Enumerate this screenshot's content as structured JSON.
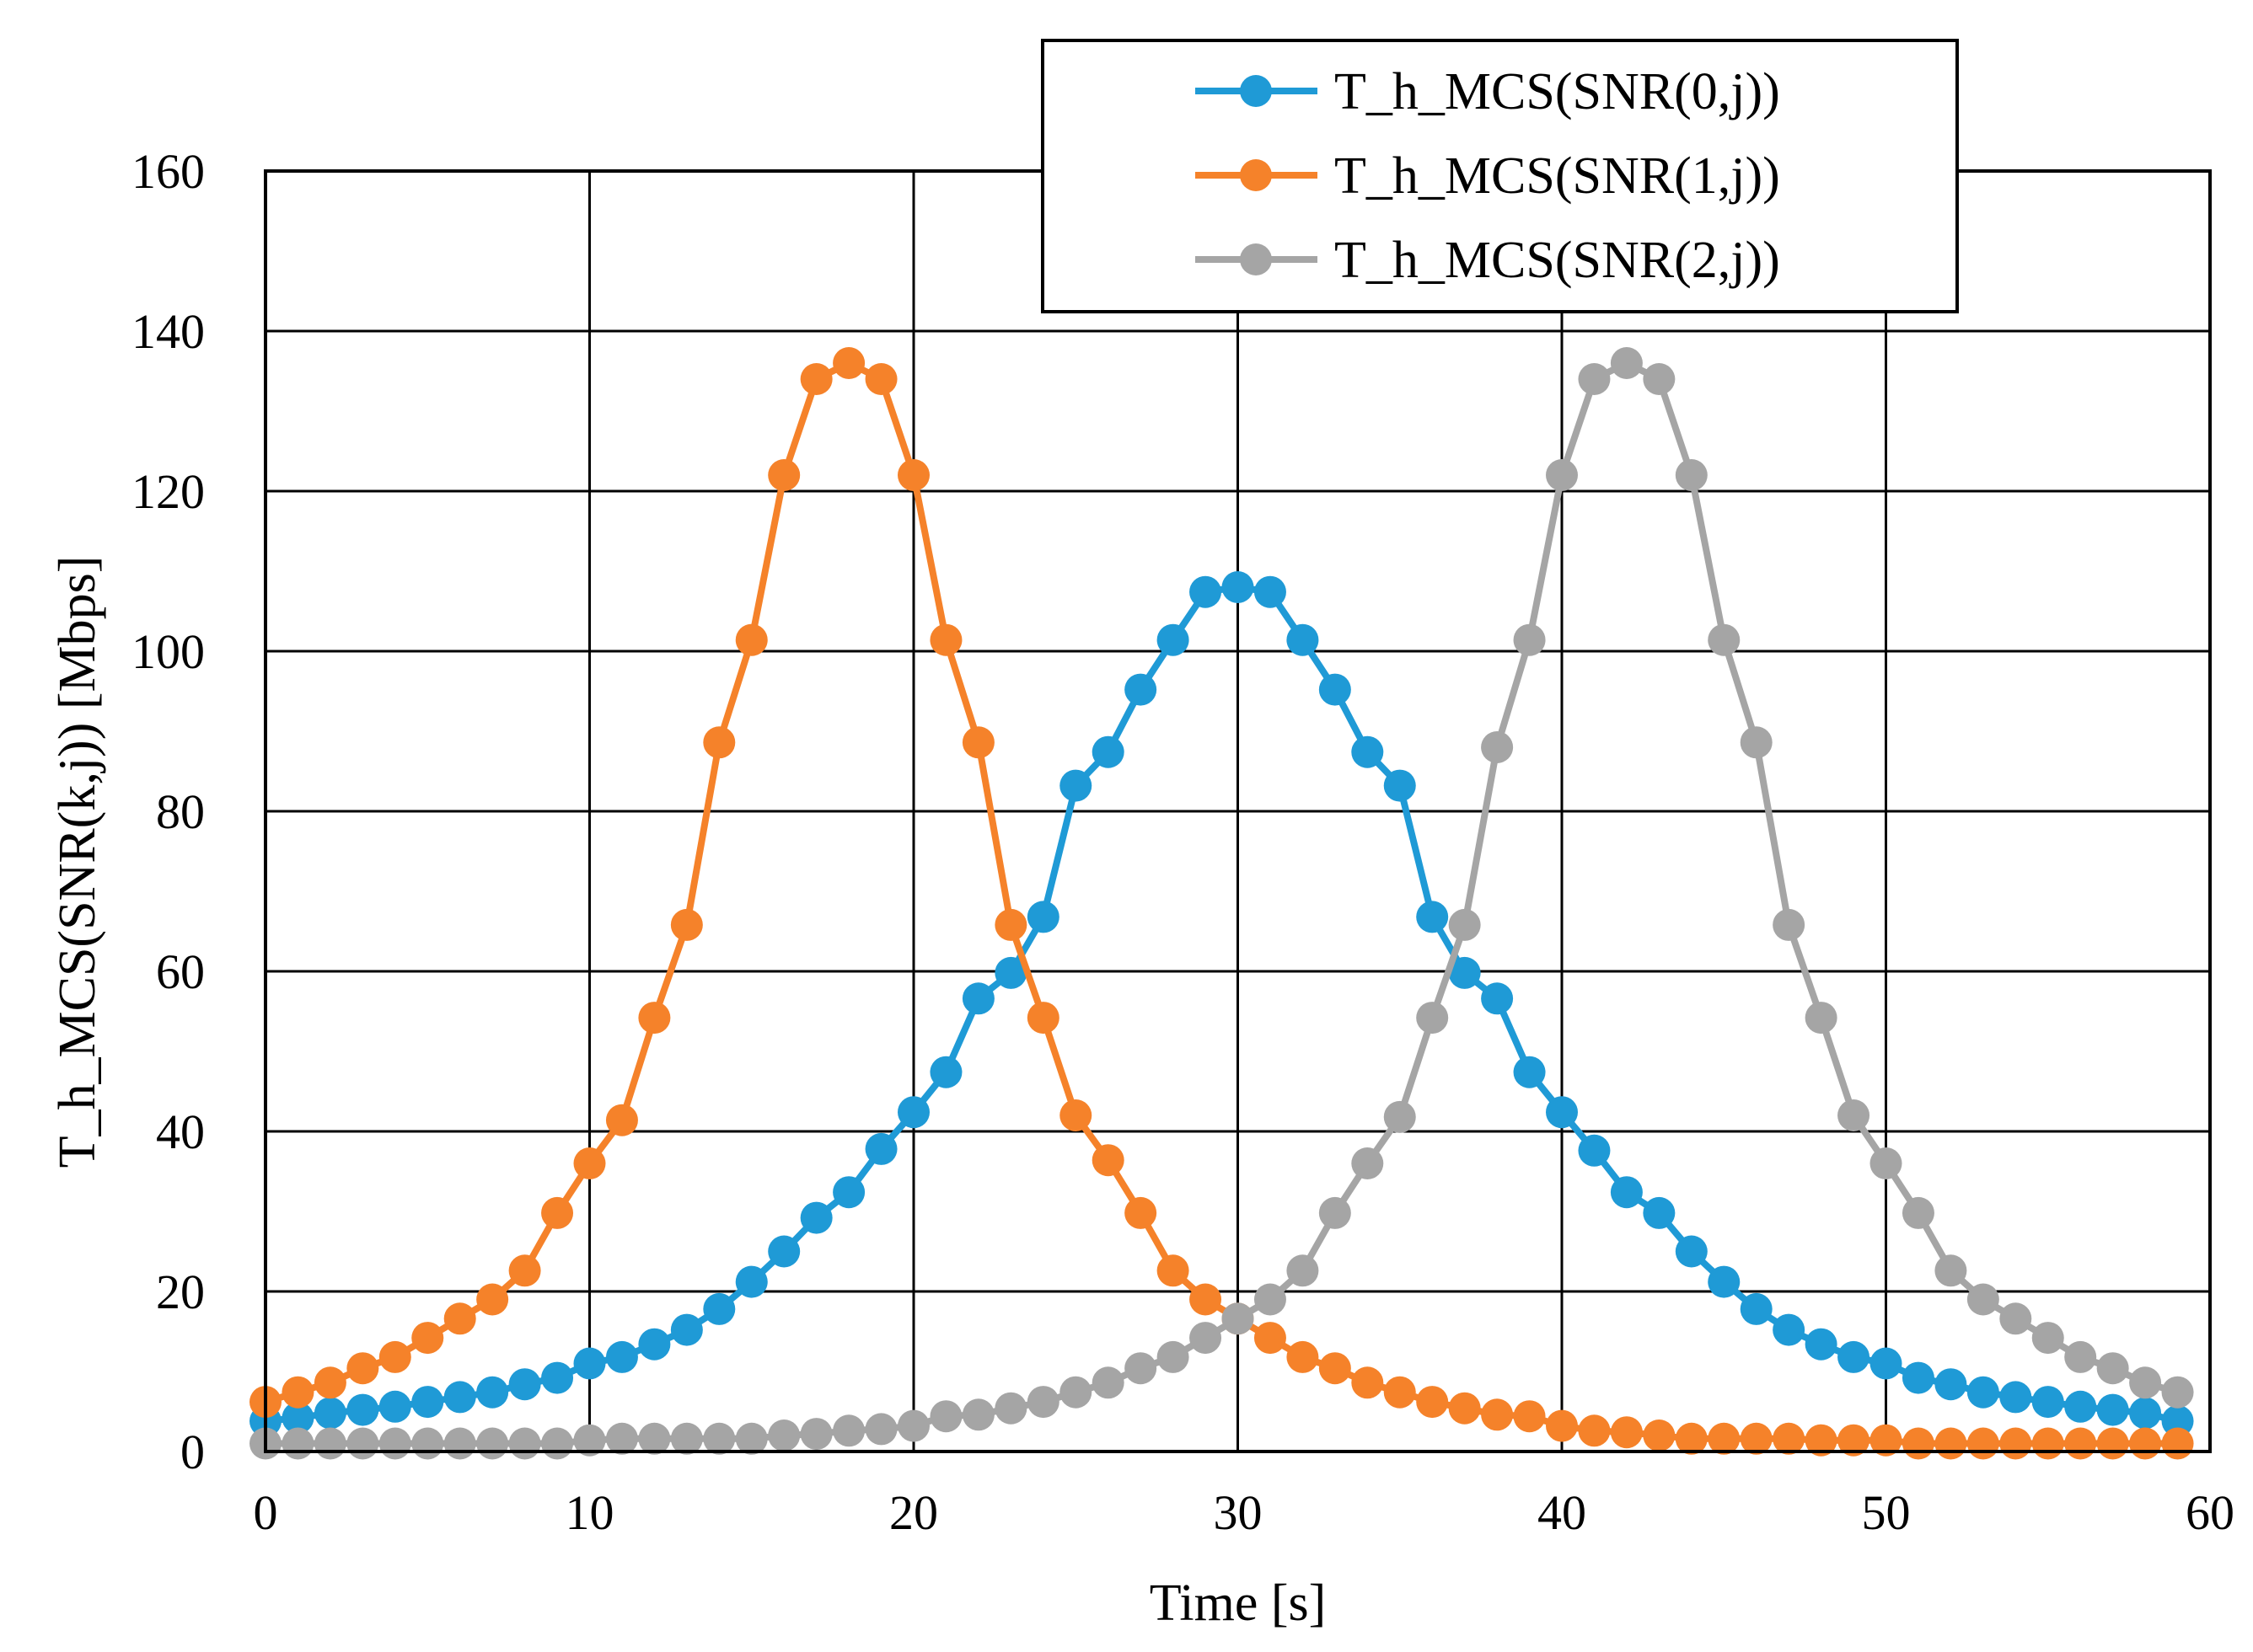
{
  "chart_data": {
    "type": "line",
    "title": "",
    "xlabel": "Time  [s]",
    "ylabel": "T_h_MCS(SNR(k,j))  [Mbps]",
    "xlim": [
      0,
      60
    ],
    "ylim": [
      0,
      160
    ],
    "xticks": [
      "0",
      "10",
      "20",
      "30",
      "40",
      "50",
      "60"
    ],
    "yticks": [
      "0",
      "20",
      "40",
      "60",
      "80",
      "100",
      "120",
      "140",
      "160"
    ],
    "grid": true,
    "legend_position": "top-right",
    "x": [
      0,
      1,
      2,
      3,
      4,
      5,
      6,
      7,
      8,
      9,
      10,
      11,
      12,
      13,
      14,
      15,
      16,
      17,
      18,
      19,
      20,
      21,
      22,
      23,
      24,
      25,
      26,
      27,
      28,
      29,
      30,
      31,
      32,
      33,
      34,
      35,
      36,
      37,
      38,
      39,
      40,
      41,
      42,
      43,
      44,
      45,
      46,
      47,
      48,
      49,
      50,
      51,
      52,
      53,
      54,
      55,
      56,
      57,
      58,
      59
    ],
    "series": [
      {
        "name": "T_h_MCS(SNR(0,j))",
        "color": "#1f9ad6",
        "values": [
          3.8,
          4.2,
          4.8,
          5.2,
          5.6,
          6.2,
          6.8,
          7.4,
          8.4,
          9.2,
          11,
          11.8,
          13.4,
          15.2,
          17.8,
          21.2,
          25,
          29.2,
          32.4,
          37.8,
          42.4,
          47.4,
          56.6,
          59.8,
          66.8,
          83.2,
          87.4,
          95.2,
          101.4,
          107.4,
          108,
          107.4,
          101.4,
          95.2,
          87.4,
          83.2,
          66.8,
          59.8,
          56.6,
          47.4,
          42.4,
          37.6,
          32.4,
          29.8,
          25,
          21.2,
          17.8,
          15.2,
          13.4,
          11.8,
          11,
          9.2,
          8.4,
          7.4,
          6.8,
          6.2,
          5.6,
          5.2,
          4.8,
          3.8
        ]
      },
      {
        "name": "T_h_MCS(SNR(1,j))",
        "color": "#f5822a",
        "values": [
          6.2,
          7.4,
          8.6,
          10.4,
          11.8,
          14.2,
          16.6,
          19,
          22.6,
          29.8,
          36,
          41.4,
          54.2,
          65.8,
          88.6,
          101.4,
          122,
          134,
          136,
          134,
          122,
          101.4,
          88.6,
          65.8,
          54.2,
          42,
          36.4,
          29.8,
          22.6,
          19,
          16.6,
          14.2,
          11.8,
          10.4,
          8.6,
          7.4,
          6.2,
          5.4,
          4.6,
          4.4,
          3.2,
          2.6,
          2.4,
          2,
          1.6,
          1.6,
          1.6,
          1.6,
          1.4,
          1.4,
          1.4,
          1,
          1,
          1,
          1,
          1,
          1,
          1,
          1,
          1
        ]
      },
      {
        "name": "T_h_MCS(SNR(2,j))",
        "color": "#a5a5a5",
        "values": [
          1,
          1,
          1,
          1,
          1,
          1,
          1,
          1,
          1,
          1,
          1.4,
          1.6,
          1.6,
          1.6,
          1.6,
          1.6,
          2,
          2.2,
          2.6,
          2.8,
          3.2,
          4.4,
          4.6,
          5.4,
          6.2,
          7.4,
          8.6,
          10.4,
          11.8,
          14.2,
          16.6,
          19,
          22.6,
          29.8,
          36,
          41.8,
          54.2,
          65.8,
          88,
          101.4,
          122,
          134,
          136,
          134,
          122,
          101.4,
          88.6,
          65.8,
          54.2,
          42,
          36,
          29.8,
          22.6,
          19,
          16.6,
          14.2,
          11.8,
          10.4,
          8.6,
          7.4
        ]
      }
    ]
  }
}
